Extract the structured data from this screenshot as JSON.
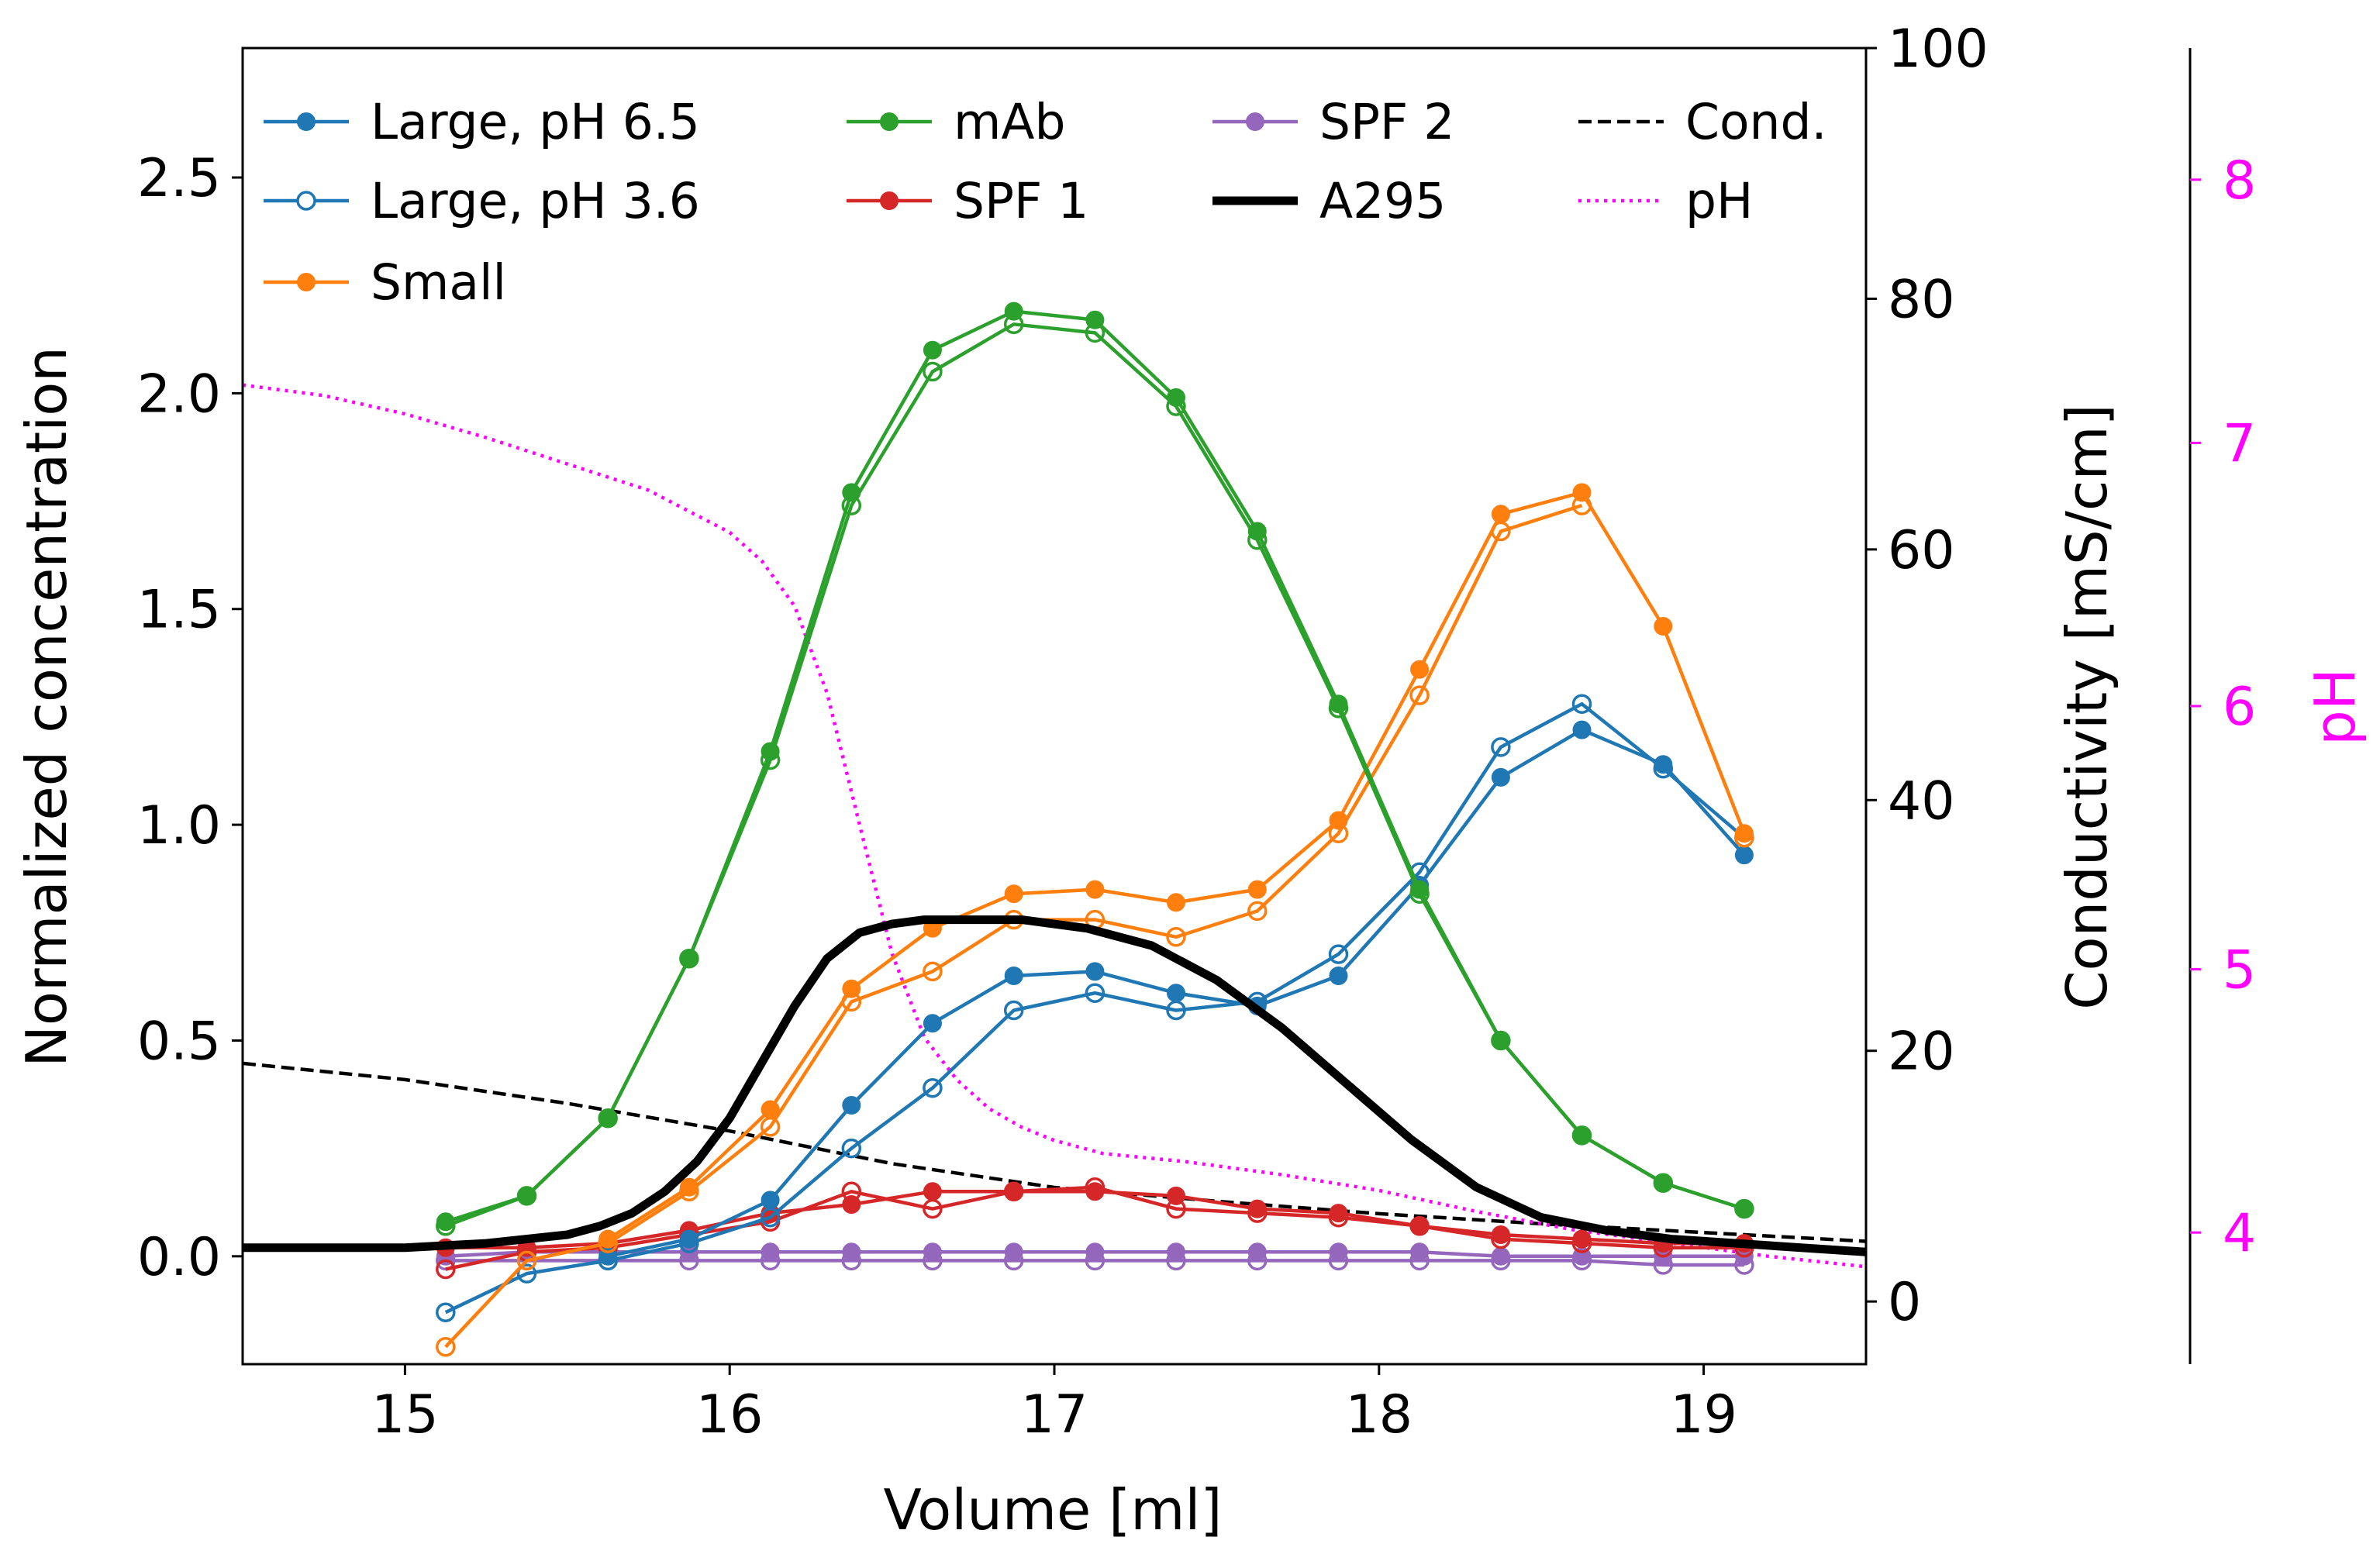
{
  "chart_data": {
    "type": "line",
    "xlabel": "Volume [ml]",
    "ylabel": "Normalized concentration",
    "y2label": "Conductivity [mS/cm]",
    "y3label": "pH",
    "xlim": [
      14.5,
      19.5
    ],
    "ylim": [
      -0.25,
      2.8
    ],
    "y2lim": [
      -5,
      100
    ],
    "y3lim": [
      3.5,
      8.5
    ],
    "x_ticks": [
      "15",
      "16",
      "17",
      "18",
      "19"
    ],
    "y_ticks": [
      "0.0",
      "0.5",
      "1.0",
      "1.5",
      "2.0",
      "2.5"
    ],
    "y2_ticks": [
      "0",
      "20",
      "40",
      "60",
      "80",
      "100"
    ],
    "y3_ticks": [
      "4",
      "5",
      "6",
      "7",
      "8"
    ],
    "legend_position": "top, 4 columns",
    "colors": {
      "blue": "#1f77b4",
      "orange": "#ff7f0e",
      "green": "#2ca02c",
      "red": "#d62728",
      "purple": "#9467bd",
      "black": "#000000",
      "magenta": "#ff00ff"
    },
    "sample_x": [
      15.125,
      15.375,
      15.625,
      15.875,
      16.125,
      16.375,
      16.625,
      16.875,
      17.125,
      17.375,
      17.625,
      17.875,
      18.125,
      18.375,
      18.625,
      18.875,
      19.125
    ],
    "series": [
      {
        "name": "Large, pH 6.5",
        "color": "#1f77b4",
        "marker": "filled",
        "values": [
          null,
          null,
          0.0,
          0.04,
          0.13,
          0.35,
          0.54,
          0.65,
          0.66,
          0.61,
          0.58,
          0.65,
          0.86,
          1.11,
          1.22,
          1.14,
          0.93
        ]
      },
      {
        "name": "Large, pH 3.6",
        "color": "#1f77b4",
        "marker": "open",
        "values": [
          -0.13,
          -0.04,
          -0.01,
          0.03,
          0.09,
          0.25,
          0.39,
          0.57,
          0.61,
          0.57,
          0.59,
          0.7,
          0.89,
          1.18,
          1.28,
          1.13,
          0.97
        ]
      },
      {
        "name": "Small",
        "color": "#ff7f0e",
        "marker": "filled",
        "values": [
          null,
          null,
          0.04,
          0.16,
          0.34,
          0.62,
          0.76,
          0.84,
          0.85,
          0.82,
          0.85,
          1.01,
          1.36,
          1.72,
          1.77,
          1.46,
          0.98
        ]
      },
      {
        "name": "Small (pH 3.6)",
        "color": "#ff7f0e",
        "marker": "open",
        "values": [
          -0.21,
          -0.01,
          0.03,
          0.15,
          0.3,
          0.59,
          0.66,
          0.78,
          0.78,
          0.74,
          0.8,
          0.98,
          1.3,
          1.68,
          1.74,
          null,
          0.97
        ]
      },
      {
        "name": "mAb",
        "color": "#2ca02c",
        "marker": "filled",
        "values": [
          0.08,
          0.14,
          0.32,
          0.69,
          1.17,
          1.77,
          2.1,
          2.19,
          2.17,
          1.99,
          1.68,
          1.28,
          0.85,
          0.5,
          0.28,
          0.17,
          0.11
        ]
      },
      {
        "name": "mAb (pH 3.6)",
        "color": "#2ca02c",
        "marker": "open",
        "values": [
          0.07,
          0.14,
          0.32,
          0.69,
          1.15,
          1.74,
          2.05,
          2.16,
          2.14,
          1.97,
          1.66,
          1.27,
          0.84,
          0.5,
          0.28,
          0.17,
          0.11
        ]
      },
      {
        "name": "SPF 1",
        "color": "#d62728",
        "marker": "filled",
        "values": [
          0.02,
          0.02,
          0.03,
          0.06,
          0.1,
          0.12,
          0.15,
          0.15,
          0.15,
          0.14,
          0.11,
          0.1,
          0.07,
          0.05,
          0.04,
          0.03,
          0.03
        ]
      },
      {
        "name": "SPF 1 (pH 3.6)",
        "color": "#d62728",
        "marker": "open",
        "values": [
          -0.03,
          0.01,
          0.02,
          0.05,
          0.08,
          0.15,
          0.11,
          0.15,
          0.16,
          0.11,
          0.1,
          0.09,
          0.07,
          0.04,
          0.03,
          0.02,
          0.02
        ]
      },
      {
        "name": "SPF 2",
        "color": "#9467bd",
        "marker": "filled",
        "values": [
          0.0,
          0.01,
          0.01,
          0.01,
          0.01,
          0.01,
          0.01,
          0.01,
          0.01,
          0.01,
          0.01,
          0.01,
          0.01,
          0.0,
          0.0,
          0.0,
          0.0
        ]
      },
      {
        "name": "SPF 2 (pH 3.6)",
        "color": "#9467bd",
        "marker": "open",
        "values": [
          -0.01,
          -0.01,
          -0.01,
          -0.01,
          -0.01,
          -0.01,
          -0.01,
          -0.01,
          -0.01,
          -0.01,
          -0.01,
          -0.01,
          -0.01,
          -0.01,
          -0.01,
          -0.02,
          -0.02
        ]
      }
    ],
    "a295": {
      "name": "A295",
      "color": "#000000",
      "x": [
        14.5,
        15.0,
        15.25,
        15.5,
        15.6,
        15.7,
        15.8,
        15.9,
        16.0,
        16.1,
        16.2,
        16.3,
        16.4,
        16.5,
        16.6,
        16.75,
        16.9,
        17.1,
        17.3,
        17.5,
        17.7,
        17.9,
        18.1,
        18.3,
        18.5,
        18.7,
        18.9,
        19.1,
        19.3,
        19.5
      ],
      "y": [
        0.02,
        0.02,
        0.03,
        0.05,
        0.07,
        0.1,
        0.15,
        0.22,
        0.32,
        0.45,
        0.58,
        0.69,
        0.75,
        0.77,
        0.78,
        0.78,
        0.78,
        0.76,
        0.72,
        0.64,
        0.53,
        0.4,
        0.27,
        0.16,
        0.09,
        0.06,
        0.04,
        0.03,
        0.02,
        0.01
      ]
    },
    "conductivity": {
      "name": "Cond.",
      "color": "#000000",
      "style": "dashed",
      "x": [
        14.5,
        15.0,
        15.5,
        16.0,
        16.5,
        17.0,
        17.5,
        18.0,
        18.5,
        19.0,
        19.5
      ],
      "y": [
        19.0,
        17.7,
        15.8,
        13.6,
        11.0,
        9.1,
        8.0,
        7.0,
        6.2,
        5.5,
        4.8
      ]
    },
    "ph": {
      "name": "pH",
      "color": "#ff00ff",
      "style": "dotted",
      "x": [
        14.5,
        14.75,
        15.0,
        15.25,
        15.5,
        15.75,
        16.0,
        16.1,
        16.2,
        16.3,
        16.4,
        16.5,
        16.6,
        16.7,
        16.8,
        16.9,
        17.0,
        17.15,
        17.4,
        17.7,
        18.0,
        18.3,
        18.6,
        18.9,
        19.2,
        19.5
      ],
      "y": [
        7.22,
        7.18,
        7.11,
        7.02,
        6.92,
        6.82,
        6.66,
        6.55,
        6.38,
        6.05,
        5.55,
        5.06,
        4.74,
        4.58,
        4.47,
        4.4,
        4.35,
        4.3,
        4.27,
        4.22,
        4.16,
        4.08,
        4.01,
        3.96,
        3.91,
        3.87
      ]
    }
  },
  "legend": [
    {
      "label": "Large, pH 6.5",
      "color": "#1f77b4",
      "kind": "filled"
    },
    {
      "label": "Large, pH 3.6",
      "color": "#1f77b4",
      "kind": "open"
    },
    {
      "label": "Small",
      "color": "#ff7f0e",
      "kind": "filled"
    },
    {
      "label": "mAb",
      "color": "#2ca02c",
      "kind": "filled"
    },
    {
      "label": "SPF 1",
      "color": "#d62728",
      "kind": "filled"
    },
    {
      "label": "SPF 2",
      "color": "#9467bd",
      "kind": "filled"
    },
    {
      "label": "A295",
      "color": "#000000",
      "kind": "thick"
    },
    {
      "label": "Cond.",
      "color": "#000000",
      "kind": "dashed"
    },
    {
      "label": "pH",
      "color": "#ff00ff",
      "kind": "dotted"
    }
  ]
}
